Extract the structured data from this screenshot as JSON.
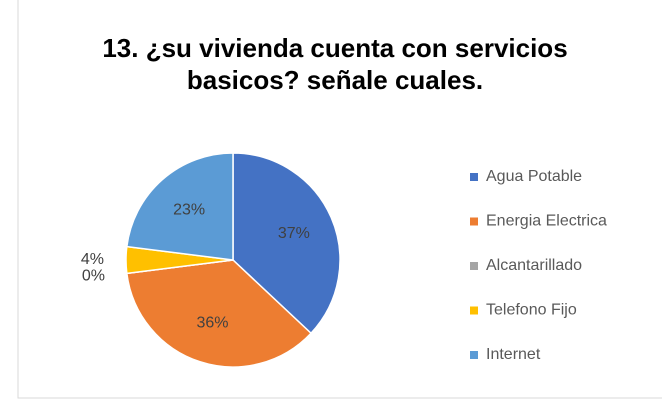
{
  "chart_data": {
    "type": "pie",
    "title": "13. ¿su vivienda cuenta con servicios basicos? señale cuales.",
    "categories": [
      "Agua Potable",
      "Energia Electrica",
      "Alcantarillado",
      "Telefono Fijo",
      "Internet"
    ],
    "values": [
      37,
      36,
      0,
      4,
      23
    ],
    "value_labels": [
      "37%",
      "36%",
      "0%",
      "4%",
      "23%"
    ],
    "colors": [
      "#4472c4",
      "#ed7d31",
      "#a5a5a5",
      "#ffc000",
      "#5b9bd5"
    ],
    "legend": "right"
  }
}
